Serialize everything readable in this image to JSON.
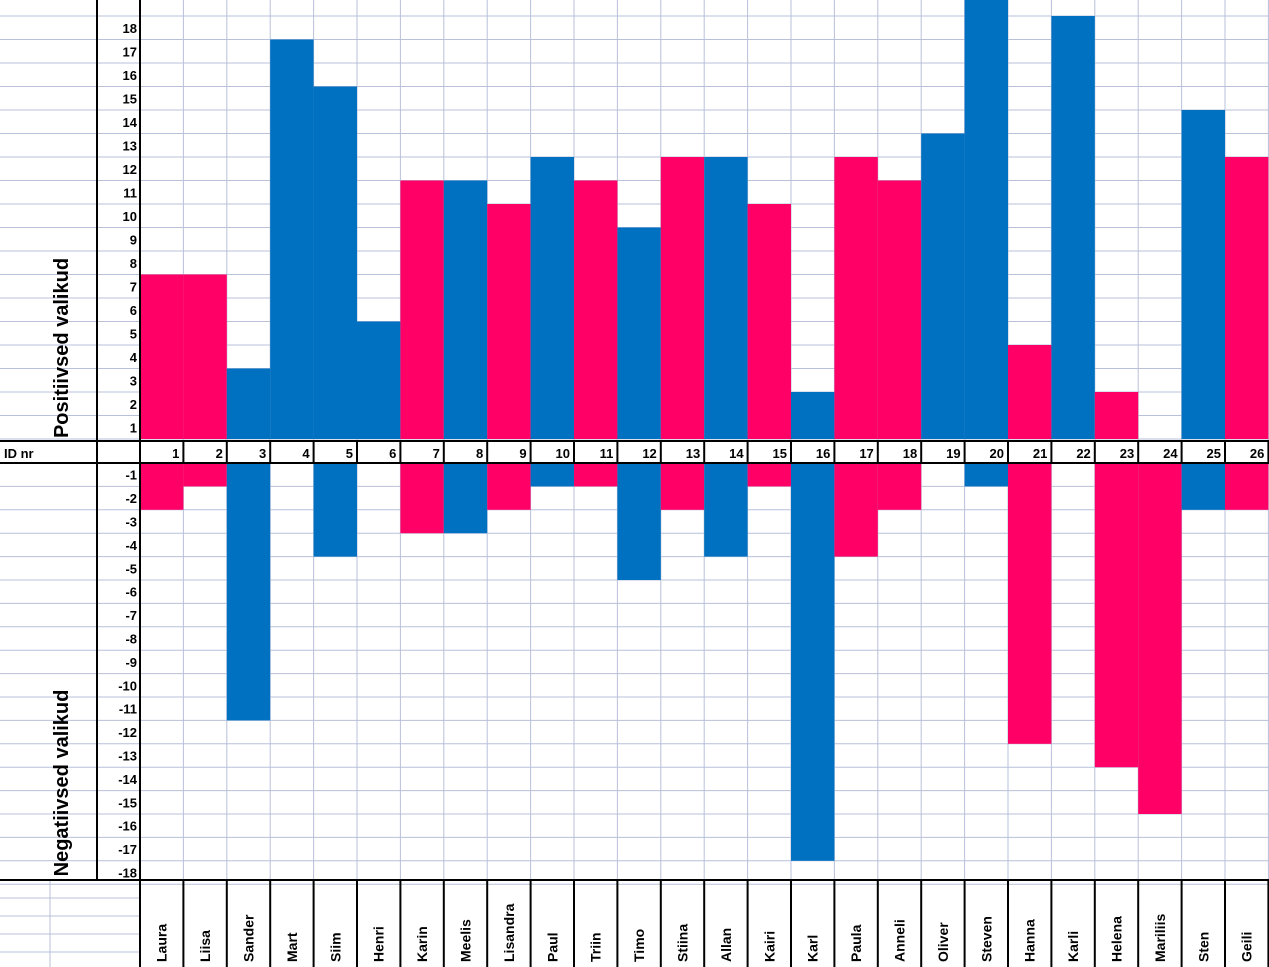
{
  "chart_data": {
    "type": "bar",
    "id_label": "ID nr",
    "positive_label": "Positiivsed valikud",
    "negative_label": "Negatiivsed valikud",
    "ylim": [
      -18,
      18
    ],
    "y_ticks_positive": [
      "1",
      "2",
      "3",
      "4",
      "5",
      "6",
      "7",
      "8",
      "9",
      "10",
      "11",
      "12",
      "13",
      "14",
      "15",
      "16",
      "17",
      "18"
    ],
    "y_ticks_negative": [
      "-1",
      "-2",
      "-3",
      "-4",
      "-5",
      "-6",
      "-7",
      "-8",
      "-9",
      "-10",
      "-11",
      "-12",
      "-13",
      "-14",
      "-15",
      "-16",
      "-17",
      "-18"
    ],
    "ids": [
      "1",
      "2",
      "3",
      "4",
      "5",
      "6",
      "7",
      "8",
      "9",
      "10",
      "11",
      "12",
      "13",
      "14",
      "15",
      "16",
      "17",
      "18",
      "19",
      "20",
      "21",
      "22",
      "23",
      "24",
      "25",
      "26"
    ],
    "names": [
      "Laura",
      "Liisa",
      "Sander",
      "Mart",
      "Siim",
      "Henri",
      "Karin",
      "Meelis",
      "Lisandra",
      "Paul",
      "Triin",
      "Timo",
      "Stiina",
      "Allan",
      "Kairi",
      "Karl",
      "Paula",
      "Anneli",
      "Oliver",
      "Steven",
      "Hanna",
      "Karli",
      "Helena",
      "Mariliis",
      "Sten",
      "Geili"
    ],
    "positive": [
      7,
      7,
      3,
      17,
      15,
      5,
      11,
      11,
      10,
      12,
      11,
      9,
      12,
      12,
      10,
      2,
      12,
      11,
      13,
      19,
      4,
      18,
      2,
      0,
      14,
      12
    ],
    "negative": [
      2,
      1,
      11,
      0,
      4,
      0,
      3,
      3,
      2,
      1,
      1,
      5,
      2,
      4,
      1,
      17,
      4,
      2,
      0,
      1,
      12,
      0,
      13,
      15,
      2,
      2
    ],
    "gender": [
      "f",
      "f",
      "m",
      "m",
      "m",
      "m",
      "f",
      "m",
      "f",
      "m",
      "f",
      "m",
      "f",
      "m",
      "f",
      "m",
      "f",
      "f",
      "m",
      "m",
      "f",
      "m",
      "f",
      "f",
      "m",
      "f"
    ],
    "colors": {
      "m": "#0070C0",
      "f": "#FF0066",
      "grid": "#B8C0DA",
      "border": "#000000"
    },
    "grid": true
  }
}
